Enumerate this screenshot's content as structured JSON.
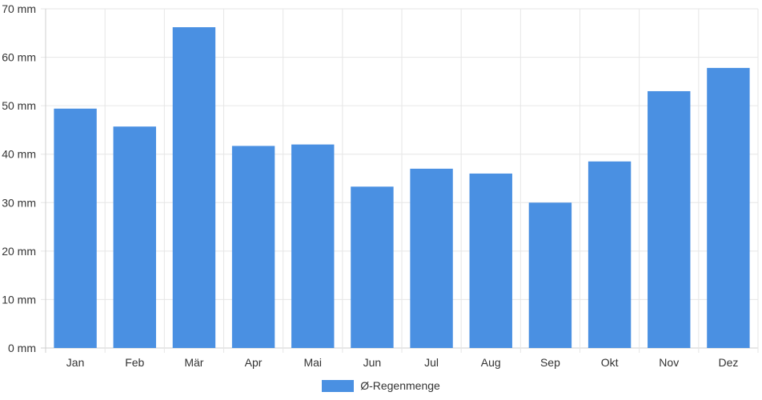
{
  "chart_data": {
    "type": "bar",
    "categories": [
      "Jan",
      "Feb",
      "Mär",
      "Apr",
      "Mai",
      "Jun",
      "Jul",
      "Aug",
      "Sep",
      "Okt",
      "Nov",
      "Dez"
    ],
    "series": [
      {
        "name": "Ø-Regenmenge",
        "values": [
          49.4,
          45.7,
          66.2,
          41.7,
          42.0,
          33.3,
          37.0,
          36.0,
          30.0,
          38.5,
          53.0,
          57.8
        ],
        "color": "#4a90e2"
      }
    ],
    "ylim": [
      0,
      70
    ],
    "y_ticks": [
      "0 mm",
      "10 mm",
      "20 mm",
      "30 mm",
      "40 mm",
      "50 mm",
      "60 mm",
      "70 mm"
    ],
    "grid": true,
    "legend_position": "bottom",
    "title": "",
    "xlabel": "",
    "ylabel": ""
  },
  "legend": {
    "label": "Ø-Regenmenge",
    "color": "#4a90e2"
  }
}
